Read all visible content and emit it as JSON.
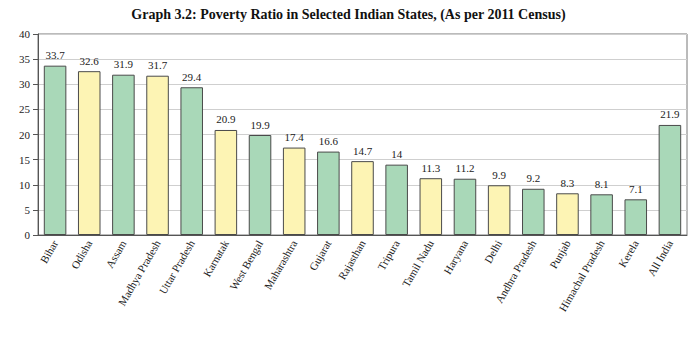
{
  "chart_data": {
    "type": "bar",
    "title": "Graph 3.2: Poverty Ratio in Selected Indian States, (As per 2011 Census)",
    "categories": [
      "Bihar",
      "Odisha",
      "Assam",
      "Madhya Pradesh",
      "Uttar Pradesh",
      "Karnatak",
      "West Bengal",
      "Maharashtra",
      "Gujarat",
      "Rajasthan",
      "Tripura",
      "Tamil Nadu",
      "Haryana",
      "Delhi",
      "Andhra Pradesh",
      "Punjab",
      "Himachal Pradesh",
      "Kerela",
      "All India"
    ],
    "values": [
      33.7,
      32.6,
      31.9,
      31.7,
      29.4,
      20.9,
      19.9,
      17.4,
      16.6,
      14.7,
      14,
      11.3,
      11.2,
      9.9,
      9.2,
      8.3,
      8.1,
      7.1,
      21.9
    ],
    "colors": [
      "#a9d8b8",
      "#fdf4b4",
      "#a9d8b8",
      "#fdf4b4",
      "#a9d8b8",
      "#fdf4b4",
      "#a9d8b8",
      "#fdf4b4",
      "#a9d8b8",
      "#fdf4b4",
      "#a9d8b8",
      "#fdf4b4",
      "#a9d8b8",
      "#fdf4b4",
      "#a9d8b8",
      "#fdf4b4",
      "#a9d8b8",
      "#a9d8b8",
      "#a9d8b8"
    ],
    "ylim": [
      0,
      40
    ],
    "yticks": [
      0,
      5,
      10,
      15,
      20,
      25,
      30,
      35,
      40
    ],
    "grid": true,
    "data_labels": true
  }
}
